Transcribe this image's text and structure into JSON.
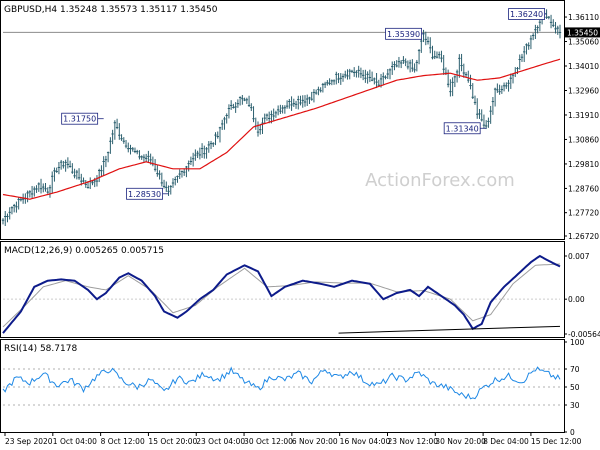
{
  "chart_data": [
    {
      "type": "candlestick",
      "title": "GBPUSD,H4  1.35248 1.35573 1.35117 1.35450",
      "last_price_label": "1.35450",
      "ylim": [
        1.2672,
        1.3624
      ],
      "y_ticks": [
        "1.36110",
        "1.35060",
        "1.34010",
        "1.32960",
        "1.31910",
        "1.30860",
        "1.29810",
        "1.28760",
        "1.27720",
        "1.26720"
      ],
      "annotations": [
        {
          "text": "1.31750",
          "value": 1.3175
        },
        {
          "text": "1.28530",
          "value": 1.2853
        },
        {
          "text": "1.35390",
          "value": 1.3539
        },
        {
          "text": "1.31340",
          "value": 1.3134
        },
        {
          "text": "1.36240",
          "value": 1.3624
        }
      ],
      "watermark": "ActionForex.com",
      "price_path": [
        [
          0,
          1.274
        ],
        [
          4,
          1.2795
        ],
        [
          10,
          1.284
        ],
        [
          16,
          1.289
        ],
        [
          20,
          1.287
        ],
        [
          24,
          1.296
        ],
        [
          28,
          1.299
        ],
        [
          32,
          1.294
        ],
        [
          38,
          1.289
        ],
        [
          42,
          1.292
        ],
        [
          46,
          1.3
        ],
        [
          50,
          1.315
        ],
        [
          54,
          1.308
        ],
        [
          60,
          1.302
        ],
        [
          66,
          1.3
        ],
        [
          70,
          1.293
        ],
        [
          74,
          1.2853
        ],
        [
          78,
          1.292
        ],
        [
          84,
          1.3
        ],
        [
          90,
          1.304
        ],
        [
          96,
          1.31
        ],
        [
          100,
          1.32
        ],
        [
          106,
          1.326
        ],
        [
          110,
          1.324
        ],
        [
          114,
          1.313
        ],
        [
          118,
          1.318
        ],
        [
          124,
          1.322
        ],
        [
          130,
          1.325
        ],
        [
          136,
          1.326
        ],
        [
          142,
          1.33
        ],
        [
          148,
          1.335
        ],
        [
          156,
          1.338
        ],
        [
          162,
          1.336
        ],
        [
          168,
          1.332
        ],
        [
          174,
          1.339
        ],
        [
          180,
          1.342
        ],
        [
          184,
          1.338
        ],
        [
          188,
          1.3539
        ],
        [
          192,
          1.345
        ],
        [
          196,
          1.343
        ],
        [
          200,
          1.33
        ],
        [
          204,
          1.342
        ],
        [
          208,
          1.335
        ],
        [
          212,
          1.32
        ],
        [
          216,
          1.3134
        ],
        [
          220,
          1.329
        ],
        [
          226,
          1.333
        ],
        [
          232,
          1.344
        ],
        [
          236,
          1.352
        ],
        [
          240,
          1.36
        ],
        [
          243,
          1.3624
        ],
        [
          246,
          1.358
        ],
        [
          249,
          1.3545
        ]
      ],
      "ma_path": [
        [
          0,
          1.285
        ],
        [
          12,
          1.283
        ],
        [
          24,
          1.286
        ],
        [
          40,
          1.291
        ],
        [
          52,
          1.296
        ],
        [
          64,
          1.299
        ],
        [
          76,
          1.296
        ],
        [
          88,
          1.296
        ],
        [
          100,
          1.303
        ],
        [
          112,
          1.314
        ],
        [
          126,
          1.318
        ],
        [
          140,
          1.322
        ],
        [
          152,
          1.326
        ],
        [
          164,
          1.33
        ],
        [
          176,
          1.334
        ],
        [
          188,
          1.336
        ],
        [
          200,
          1.337
        ],
        [
          212,
          1.334
        ],
        [
          222,
          1.335
        ],
        [
          232,
          1.338
        ],
        [
          242,
          1.341
        ],
        [
          249,
          1.343
        ]
      ],
      "n_bars": 250,
      "x_labels": [
        "23 Sep 2020",
        "1 Oct 04:00",
        "8 Oct 12:00",
        "15 Oct 20:00",
        "23 Oct 04:00",
        "30 Oct 12:00",
        "6 Nov 20:00",
        "16 Nov 04:00",
        "23 Nov 12:00",
        "30 Nov 20:00",
        "8 Dec 04:00",
        "15 Dec 12:00"
      ]
    },
    {
      "type": "line",
      "title": "MACD(12,26,9) 0.005265 0.005715",
      "y_ticks": [
        "0.007",
        "0.00",
        "-0.005644"
      ],
      "ylim": [
        -0.005644,
        0.007
      ],
      "macd_path": [
        [
          0,
          -0.0055
        ],
        [
          8,
          -0.002
        ],
        [
          14,
          0.002
        ],
        [
          20,
          0.003
        ],
        [
          26,
          0.0032
        ],
        [
          32,
          0.003
        ],
        [
          38,
          0.0015
        ],
        [
          42,
          0.0
        ],
        [
          46,
          0.001
        ],
        [
          52,
          0.0035
        ],
        [
          56,
          0.0042
        ],
        [
          62,
          0.003
        ],
        [
          68,
          0.0005
        ],
        [
          72,
          -0.002
        ],
        [
          78,
          -0.003
        ],
        [
          82,
          -0.002
        ],
        [
          88,
          0.0
        ],
        [
          94,
          0.0015
        ],
        [
          100,
          0.004
        ],
        [
          108,
          0.0055
        ],
        [
          114,
          0.0045
        ],
        [
          120,
          0.0005
        ],
        [
          126,
          0.002
        ],
        [
          134,
          0.003
        ],
        [
          142,
          0.0025
        ],
        [
          148,
          0.002
        ],
        [
          156,
          0.003
        ],
        [
          164,
          0.0025
        ],
        [
          170,
          0.0
        ],
        [
          176,
          0.001
        ],
        [
          182,
          0.0015
        ],
        [
          186,
          0.0005
        ],
        [
          190,
          0.002
        ],
        [
          196,
          0.0005
        ],
        [
          202,
          -0.001
        ],
        [
          206,
          -0.0025
        ],
        [
          210,
          -0.0048
        ],
        [
          214,
          -0.004
        ],
        [
          218,
          -0.0005
        ],
        [
          224,
          0.002
        ],
        [
          230,
          0.004
        ],
        [
          236,
          0.006
        ],
        [
          240,
          0.007
        ],
        [
          244,
          0.0062
        ],
        [
          249,
          0.0053
        ]
      ],
      "signal_path": [
        [
          0,
          -0.0045
        ],
        [
          10,
          -0.001
        ],
        [
          18,
          0.002
        ],
        [
          28,
          0.003
        ],
        [
          38,
          0.002
        ],
        [
          46,
          0.0015
        ],
        [
          56,
          0.0038
        ],
        [
          66,
          0.0015
        ],
        [
          76,
          -0.0022
        ],
        [
          86,
          -0.001
        ],
        [
          96,
          0.002
        ],
        [
          108,
          0.005
        ],
        [
          118,
          0.002
        ],
        [
          128,
          0.0022
        ],
        [
          140,
          0.0028
        ],
        [
          152,
          0.0026
        ],
        [
          164,
          0.0026
        ],
        [
          176,
          0.0012
        ],
        [
          188,
          0.0014
        ],
        [
          200,
          0.0
        ],
        [
          210,
          -0.0035
        ],
        [
          218,
          -0.0025
        ],
        [
          228,
          0.0025
        ],
        [
          238,
          0.0055
        ],
        [
          249,
          0.0057
        ]
      ],
      "trendline": [
        [
          150,
          -0.0055
        ],
        [
          249,
          -0.0044
        ]
      ]
    },
    {
      "type": "line",
      "title": "RSI(14) 58.7178",
      "y_ticks": [
        "100",
        "70",
        "50",
        "30",
        "0"
      ],
      "ylim": [
        0,
        100
      ],
      "rsi_path": [
        [
          0,
          45
        ],
        [
          6,
          60
        ],
        [
          12,
          55
        ],
        [
          18,
          65
        ],
        [
          24,
          52
        ],
        [
          30,
          58
        ],
        [
          36,
          48
        ],
        [
          42,
          62
        ],
        [
          48,
          70
        ],
        [
          54,
          56
        ],
        [
          60,
          50
        ],
        [
          66,
          58
        ],
        [
          72,
          44
        ],
        [
          78,
          60
        ],
        [
          84,
          55
        ],
        [
          90,
          65
        ],
        [
          96,
          58
        ],
        [
          102,
          68
        ],
        [
          108,
          56
        ],
        [
          114,
          48
        ],
        [
          120,
          62
        ],
        [
          126,
          58
        ],
        [
          132,
          65
        ],
        [
          138,
          56
        ],
        [
          144,
          70
        ],
        [
          150,
          60
        ],
        [
          156,
          68
        ],
        [
          162,
          56
        ],
        [
          168,
          52
        ],
        [
          174,
          62
        ],
        [
          180,
          58
        ],
        [
          186,
          66
        ],
        [
          192,
          54
        ],
        [
          198,
          50
        ],
        [
          204,
          42
        ],
        [
          210,
          38
        ],
        [
          214,
          48
        ],
        [
          220,
          58
        ],
        [
          226,
          62
        ],
        [
          232,
          56
        ],
        [
          238,
          70
        ],
        [
          244,
          64
        ],
        [
          249,
          58.7
        ]
      ]
    }
  ]
}
